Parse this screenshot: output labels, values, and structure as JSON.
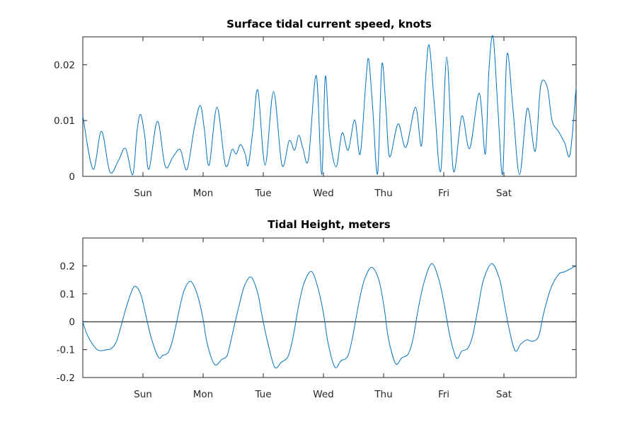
{
  "chart_data": [
    {
      "type": "line",
      "title": "Surface tidal current speed, knots",
      "xlabel": "",
      "ylabel": "",
      "xlim_days": [
        0,
        8.2
      ],
      "ylim": [
        0,
        0.025
      ],
      "x_ticks": [
        {
          "day": 1,
          "label": "Sun"
        },
        {
          "day": 2,
          "label": "Mon"
        },
        {
          "day": 3,
          "label": "Tue"
        },
        {
          "day": 4,
          "label": "Wed"
        },
        {
          "day": 5,
          "label": "Thu"
        },
        {
          "day": 6,
          "label": "Fri"
        },
        {
          "day": 7,
          "label": "Sat"
        }
      ],
      "y_ticks": [
        {
          "value": 0,
          "label": "0"
        },
        {
          "value": 0.01,
          "label": "0.01"
        },
        {
          "value": 0.02,
          "label": "0.02"
        }
      ],
      "grid": false,
      "line_color": "#0072bd",
      "series": [
        {
          "x": [
            0.0,
            0.17,
            0.31,
            0.45,
            0.59,
            0.71,
            0.83,
            0.9,
            0.96,
            1.03,
            1.1,
            1.24,
            1.37,
            1.5,
            1.62,
            1.73,
            1.85,
            1.95,
            2.02,
            2.1,
            2.23,
            2.37,
            2.48,
            2.55,
            2.62,
            2.7,
            2.75,
            2.83,
            2.91,
            3.03,
            3.17,
            3.31,
            3.43,
            3.52,
            3.59,
            3.66,
            3.75,
            3.88,
            3.97,
            4.03,
            4.1,
            4.21,
            4.31,
            4.41,
            4.52,
            4.61,
            4.7,
            4.75,
            4.82,
            4.9,
            4.97,
            5.04,
            5.1,
            5.24,
            5.37,
            5.53,
            5.63,
            5.7,
            5.76,
            5.85,
            5.95,
            6.05,
            6.16,
            6.3,
            6.43,
            6.59,
            6.69,
            6.75,
            6.82,
            6.9,
            6.98,
            7.05,
            7.15,
            7.26,
            7.39,
            7.52,
            7.61,
            7.72,
            7.8,
            7.91,
            8.01,
            8.1,
            8.2
          ],
          "y": [
            0.0108,
            0.0013,
            0.0081,
            0.0008,
            0.0028,
            0.005,
            0.0003,
            0.008,
            0.0111,
            0.0072,
            0.0013,
            0.0099,
            0.0018,
            0.0035,
            0.0048,
            0.0012,
            0.0085,
            0.0127,
            0.0085,
            0.002,
            0.0124,
            0.002,
            0.0048,
            0.004,
            0.0057,
            0.004,
            0.002,
            0.0085,
            0.0154,
            0.002,
            0.0152,
            0.002,
            0.0064,
            0.0047,
            0.0074,
            0.005,
            0.0031,
            0.0181,
            0.0003,
            0.0179,
            0.0075,
            0.0017,
            0.0078,
            0.0047,
            0.0101,
            0.004,
            0.0162,
            0.021,
            0.012,
            0.0005,
            0.02,
            0.012,
            0.0035,
            0.0094,
            0.0052,
            0.0124,
            0.0055,
            0.018,
            0.0234,
            0.012,
            0.001,
            0.0214,
            0.001,
            0.0108,
            0.005,
            0.0149,
            0.004,
            0.019,
            0.025,
            0.012,
            0.0005,
            0.0218,
            0.012,
            0.0003,
            0.0122,
            0.0045,
            0.0162,
            0.016,
            0.01,
            0.008,
            0.006,
            0.004,
            0.016
          ]
        }
      ]
    },
    {
      "type": "line",
      "title": "Tidal Height, meters",
      "xlabel": "",
      "ylabel": "",
      "xlim_days": [
        0,
        8.2
      ],
      "ylim": [
        -0.2,
        0.3
      ],
      "x_ticks": [
        {
          "day": 1,
          "label": "Sun"
        },
        {
          "day": 2,
          "label": "Mon"
        },
        {
          "day": 3,
          "label": "Tue"
        },
        {
          "day": 4,
          "label": "Wed"
        },
        {
          "day": 5,
          "label": "Thu"
        },
        {
          "day": 6,
          "label": "Fri"
        },
        {
          "day": 7,
          "label": "Sat"
        }
      ],
      "y_ticks": [
        {
          "value": -0.2,
          "label": "-0.2"
        },
        {
          "value": -0.1,
          "label": "-0.1"
        },
        {
          "value": 0,
          "label": "0"
        },
        {
          "value": 0.1,
          "label": "0.1"
        },
        {
          "value": 0.2,
          "label": "0.2"
        }
      ],
      "grid": false,
      "zero_line": true,
      "line_color": "#0072bd",
      "series": [
        {
          "x": [
            0.0,
            0.08,
            0.24,
            0.4,
            0.48,
            0.56,
            0.63,
            0.72,
            0.85,
            0.96,
            1.04,
            1.14,
            1.26,
            1.33,
            1.42,
            1.5,
            1.6,
            1.68,
            1.79,
            1.9,
            1.99,
            2.07,
            2.19,
            2.31,
            2.4,
            2.48,
            2.6,
            2.69,
            2.8,
            2.91,
            2.98,
            3.08,
            3.19,
            3.3,
            3.41,
            3.49,
            3.59,
            3.68,
            3.8,
            3.91,
            4.0,
            4.08,
            4.19,
            4.29,
            4.4,
            4.48,
            4.59,
            4.68,
            4.8,
            4.92,
            5.01,
            5.08,
            5.2,
            5.3,
            5.41,
            5.49,
            5.57,
            5.67,
            5.8,
            5.92,
            6.01,
            6.1,
            6.21,
            6.3,
            6.4,
            6.48,
            6.57,
            6.66,
            6.8,
            6.93,
            7.01,
            7.1,
            7.19,
            7.28,
            7.38,
            7.48,
            7.58,
            7.66,
            7.78,
            7.91,
            8.02,
            8.2
          ],
          "y": [
            0.0,
            -0.05,
            -0.1,
            -0.1,
            -0.095,
            -0.07,
            -0.02,
            0.05,
            0.125,
            0.1,
            0.03,
            -0.06,
            -0.128,
            -0.12,
            -0.11,
            -0.06,
            0.04,
            0.11,
            0.145,
            0.1,
            0.02,
            -0.08,
            -0.153,
            -0.135,
            -0.12,
            -0.05,
            0.06,
            0.13,
            0.16,
            0.1,
            0.02,
            -0.08,
            -0.163,
            -0.145,
            -0.125,
            -0.06,
            0.06,
            0.14,
            0.18,
            0.12,
            0.03,
            -0.08,
            -0.163,
            -0.14,
            -0.125,
            -0.06,
            0.07,
            0.15,
            0.195,
            0.15,
            0.05,
            -0.06,
            -0.15,
            -0.13,
            -0.115,
            -0.06,
            0.04,
            0.14,
            0.208,
            0.15,
            0.06,
            -0.05,
            -0.13,
            -0.105,
            -0.095,
            -0.05,
            0.05,
            0.15,
            0.208,
            0.15,
            0.06,
            -0.04,
            -0.105,
            -0.08,
            -0.065,
            -0.07,
            -0.05,
            0.03,
            0.12,
            0.17,
            0.18,
            0.2
          ]
        }
      ]
    }
  ]
}
